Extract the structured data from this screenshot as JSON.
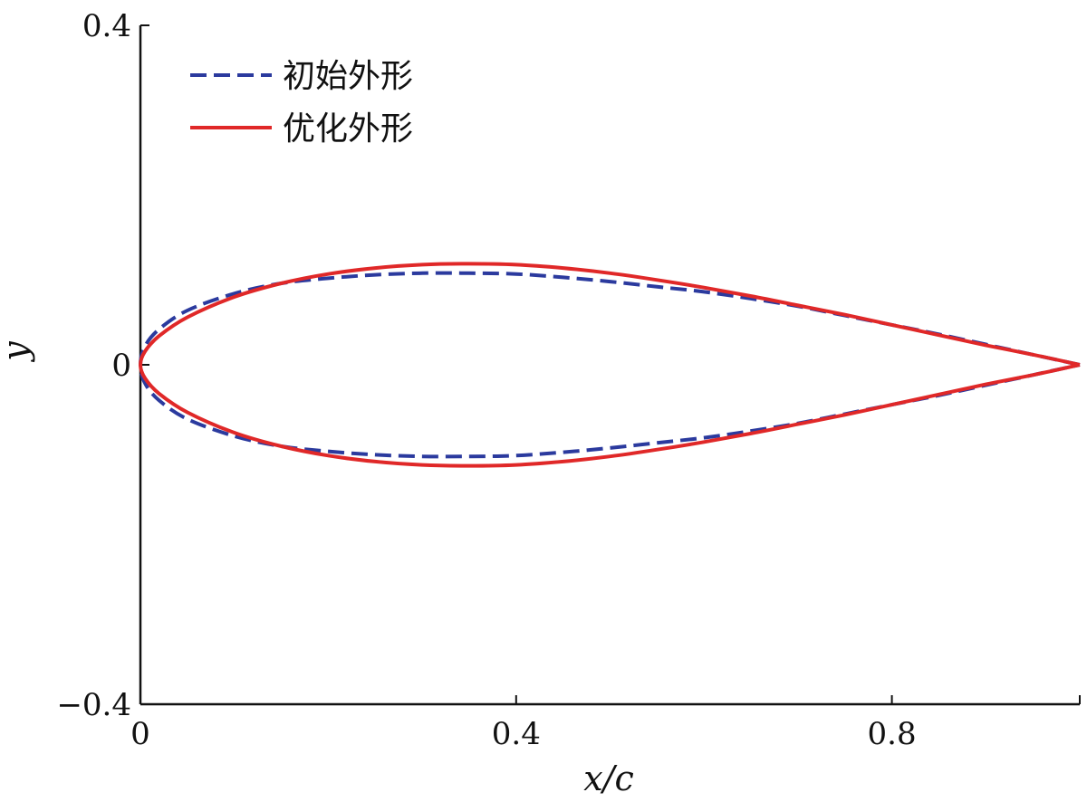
{
  "chart_data": {
    "type": "line",
    "title": "",
    "xlabel": "x/c",
    "ylabel": "y",
    "xlim": [
      0,
      1
    ],
    "ylim": [
      -0.4,
      0.4
    ],
    "grid": false,
    "legend_position": "top-left",
    "x_ticks": [
      {
        "value": 0,
        "label": "0"
      },
      {
        "value": 0.4,
        "label": "0.4"
      },
      {
        "value": 0.8,
        "label": "0.8"
      }
    ],
    "y_ticks": [
      {
        "value": 0.4,
        "label": "0.4"
      },
      {
        "value": 0,
        "label": "0"
      },
      {
        "value": -0.4,
        "label": "−0.4"
      }
    ],
    "series": [
      {
        "name": "初始外形",
        "color": "#2b3a9e",
        "style": "dashed",
        "upper": {
          "x": [
            0,
            0.005,
            0.02,
            0.05,
            0.1,
            0.15,
            0.2,
            0.25,
            0.3,
            0.35,
            0.4,
            0.45,
            0.5,
            0.55,
            0.6,
            0.65,
            0.7,
            0.75,
            0.8,
            0.85,
            0.9,
            0.95,
            1.0
          ],
          "y": [
            0,
            0.022,
            0.042,
            0.064,
            0.084,
            0.096,
            0.102,
            0.106,
            0.108,
            0.108,
            0.107,
            0.103,
            0.098,
            0.092,
            0.086,
            0.078,
            0.069,
            0.058,
            0.047,
            0.036,
            0.024,
            0.012,
            0
          ]
        },
        "lower": {
          "x": [
            0,
            0.005,
            0.02,
            0.05,
            0.1,
            0.15,
            0.2,
            0.25,
            0.3,
            0.35,
            0.4,
            0.45,
            0.5,
            0.55,
            0.6,
            0.65,
            0.7,
            0.75,
            0.8,
            0.85,
            0.9,
            0.95,
            1.0
          ],
          "y": [
            0,
            -0.022,
            -0.042,
            -0.064,
            -0.084,
            -0.096,
            -0.102,
            -0.106,
            -0.108,
            -0.108,
            -0.107,
            -0.103,
            -0.098,
            -0.092,
            -0.086,
            -0.078,
            -0.069,
            -0.058,
            -0.047,
            -0.036,
            -0.024,
            -0.012,
            0
          ]
        }
      },
      {
        "name": "优化外形",
        "color": "#e02828",
        "style": "solid",
        "upper": {
          "x": [
            0,
            0.005,
            0.02,
            0.05,
            0.1,
            0.15,
            0.2,
            0.25,
            0.3,
            0.35,
            0.4,
            0.45,
            0.5,
            0.55,
            0.6,
            0.65,
            0.7,
            0.75,
            0.8,
            0.85,
            0.9,
            0.95,
            1.0
          ],
          "y": [
            0,
            0.016,
            0.034,
            0.056,
            0.08,
            0.096,
            0.107,
            0.114,
            0.118,
            0.119,
            0.118,
            0.114,
            0.108,
            0.1,
            0.091,
            0.081,
            0.07,
            0.059,
            0.047,
            0.035,
            0.023,
            0.012,
            0
          ]
        },
        "lower": {
          "x": [
            0,
            0.005,
            0.02,
            0.05,
            0.1,
            0.15,
            0.2,
            0.25,
            0.3,
            0.35,
            0.4,
            0.45,
            0.5,
            0.55,
            0.6,
            0.65,
            0.7,
            0.75,
            0.8,
            0.85,
            0.9,
            0.95,
            1.0
          ],
          "y": [
            0,
            -0.016,
            -0.034,
            -0.056,
            -0.08,
            -0.096,
            -0.107,
            -0.114,
            -0.118,
            -0.119,
            -0.118,
            -0.114,
            -0.108,
            -0.1,
            -0.091,
            -0.081,
            -0.07,
            -0.059,
            -0.047,
            -0.035,
            -0.023,
            -0.012,
            0
          ]
        }
      }
    ]
  }
}
